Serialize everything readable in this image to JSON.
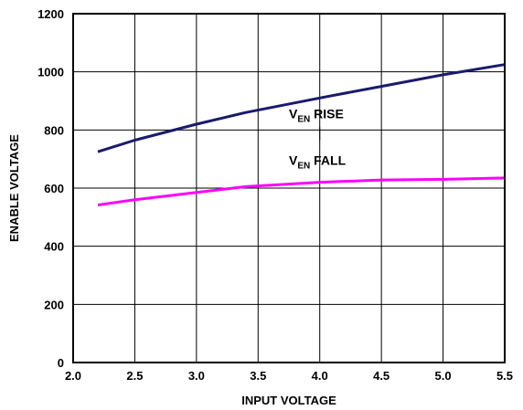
{
  "chart_data": {
    "type": "line",
    "xlabel": "INPUT VOLTAGE",
    "ylabel": "ENABLE VOLTAGE",
    "xlim": [
      2.0,
      5.5
    ],
    "ylim": [
      0,
      1200
    ],
    "xticks": [
      "2.0",
      "2.5",
      "3.0",
      "3.5",
      "4.0",
      "4.5",
      "5.0",
      "5.5"
    ],
    "yticks": [
      "0",
      "200",
      "400",
      "600",
      "800",
      "1000",
      "1200"
    ],
    "grid": true,
    "series": [
      {
        "name_main": "V",
        "name_sub": "EN",
        "name_rest": " RISE",
        "color": "#1a1a6e",
        "x": [
          2.2,
          2.5,
          3.0,
          3.4,
          4.0,
          4.5,
          5.0,
          5.5
        ],
        "y": [
          725,
          765,
          820,
          860,
          910,
          950,
          990,
          1025
        ]
      },
      {
        "name_main": "V",
        "name_sub": "EN",
        "name_rest": " FALL",
        "color": "#ff00ff",
        "x": [
          2.2,
          2.5,
          3.0,
          3.4,
          4.0,
          4.5,
          5.0,
          5.5
        ],
        "y": [
          542,
          560,
          585,
          605,
          620,
          628,
          630,
          635
        ]
      }
    ]
  }
}
